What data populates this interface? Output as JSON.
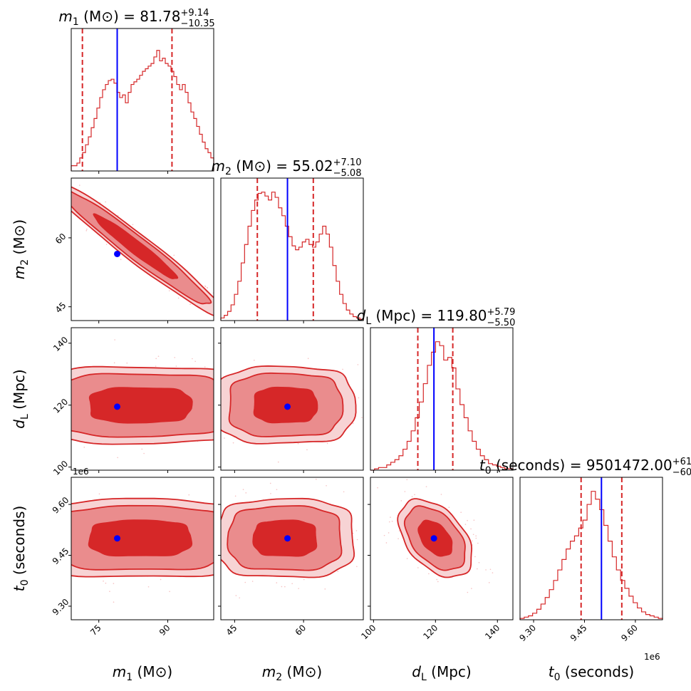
{
  "chart_data": {
    "type": "corner",
    "colors": {
      "posterior": "#d62728",
      "truth": "#0000ff",
      "frame": "#000000"
    },
    "parameters": [
      {
        "key": "m1",
        "symbol": "m",
        "sub": "1",
        "unit": " (M⊙)",
        "range": [
          69,
          100
        ],
        "ticks": [
          75,
          90
        ],
        "tick_labels": [
          "75",
          "90"
        ],
        "truth": 79,
        "median": 81.78,
        "q_low": 71.43,
        "q_high": 90.92,
        "title": {
          "prefix": " = 81.78",
          "sup": "+9.14",
          "sub": "−10.35"
        }
      },
      {
        "key": "m2",
        "symbol": "m",
        "sub": "2",
        "unit": " (M⊙)",
        "range": [
          42,
          73
        ],
        "ticks": [
          45,
          60
        ],
        "tick_labels": [
          "45",
          "60"
        ],
        "truth": 56.5,
        "median": 55.02,
        "q_low": 49.94,
        "q_high": 62.12,
        "title": {
          "prefix": " = 55.02",
          "sup": "+7.10",
          "sub": "−5.08"
        }
      },
      {
        "key": "dL",
        "symbol": "d",
        "sub": "L",
        "unit": " (Mpc)",
        "range": [
          99,
          145
        ],
        "ticks": [
          100,
          120,
          140
        ],
        "tick_labels": [
          "100",
          "120",
          "140"
        ],
        "truth": 119.5,
        "median": 119.8,
        "q_low": 114.3,
        "q_high": 125.59,
        "title": {
          "prefix": " = 119.80",
          "sup": "+5.79",
          "sub": "−5.50"
        }
      },
      {
        "key": "t0",
        "symbol": "t",
        "sub": "0",
        "unit": " (seconds)",
        "range": [
          9.26,
          9.68
        ],
        "ticks": [
          9.3,
          9.45,
          9.6
        ],
        "tick_labels": [
          "9.30",
          "9.45",
          "9.60"
        ],
        "offset_label": "1e6",
        "truth": 9.5,
        "median": 9.5,
        "q_low": 9.44,
        "q_high": 9.56,
        "title": {
          "prefix": " = 9501472.00",
          "sup": "+61",
          "sub": "−60"
        }
      }
    ],
    "histograms": [
      {
        "param": "m1",
        "values": [
          0.04,
          0.04,
          0.06,
          0.1,
          0.14,
          0.2,
          0.26,
          0.33,
          0.4,
          0.48,
          0.56,
          0.62,
          0.66,
          0.69,
          0.7,
          0.67,
          0.6,
          0.56,
          0.58,
          0.52,
          0.6,
          0.66,
          0.68,
          0.7,
          0.73,
          0.76,
          0.78,
          0.8,
          0.82,
          0.87,
          0.92,
          0.84,
          0.86,
          0.82,
          0.8,
          0.76,
          0.72,
          0.66,
          0.62,
          0.66,
          0.6,
          0.52,
          0.45,
          0.4,
          0.34,
          0.28,
          0.22,
          0.17,
          0.14,
          0.1
        ]
      },
      {
        "param": "m2",
        "values": [
          0.02,
          0.04,
          0.07,
          0.12,
          0.2,
          0.3,
          0.44,
          0.58,
          0.72,
          0.84,
          0.92,
          0.97,
          0.98,
          0.95,
          0.92,
          0.98,
          0.94,
          0.86,
          0.8,
          0.72,
          0.64,
          0.57,
          0.54,
          0.56,
          0.6,
          0.62,
          0.58,
          0.56,
          0.6,
          0.66,
          0.72,
          0.66,
          0.56,
          0.42,
          0.3,
          0.2,
          0.13,
          0.08,
          0.05,
          0.03,
          0.02,
          0.01
        ]
      },
      {
        "param": "dL",
        "values": [
          0.0,
          0.01,
          0.02,
          0.02,
          0.04,
          0.06,
          0.08,
          0.11,
          0.16,
          0.22,
          0.3,
          0.4,
          0.52,
          0.66,
          0.8,
          0.9,
          0.98,
          0.95,
          0.84,
          0.86,
          0.78,
          0.62,
          0.5,
          0.4,
          0.3,
          0.22,
          0.16,
          0.11,
          0.08,
          0.05,
          0.04,
          0.03,
          0.02,
          0.01,
          0.01
        ]
      },
      {
        "param": "t0",
        "values": [
          0.01,
          0.02,
          0.03,
          0.05,
          0.08,
          0.12,
          0.17,
          0.23,
          0.3,
          0.38,
          0.46,
          0.54,
          0.6,
          0.64,
          0.7,
          0.76,
          0.88,
          0.98,
          0.92,
          0.84,
          0.72,
          0.6,
          0.48,
          0.38,
          0.3,
          0.24,
          0.18,
          0.13,
          0.09,
          0.06,
          0.04,
          0.03,
          0.02,
          0.01
        ]
      }
    ],
    "pairs": [
      {
        "x": "m1",
        "y": "m2",
        "center": [
          83,
          58
        ],
        "sigma": [
          9,
          7
        ],
        "corr": -0.97
      },
      {
        "x": "m1",
        "y": "dL",
        "center": [
          84,
          120
        ],
        "sigma": [
          11,
          5.6
        ],
        "corr": 0.0
      },
      {
        "x": "m2",
        "y": "dL",
        "center": [
          56,
          120
        ],
        "sigma": [
          6.8,
          5.6
        ],
        "corr": 0.0
      },
      {
        "x": "m1",
        "y": "t0",
        "center": [
          84,
          9.5
        ],
        "sigma": [
          11,
          0.052
        ],
        "corr": 0.0
      },
      {
        "x": "m2",
        "y": "t0",
        "center": [
          56,
          9.5
        ],
        "sigma": [
          6.8,
          0.052
        ],
        "corr": 0.0
      },
      {
        "x": "dL",
        "y": "t0",
        "center": [
          120,
          9.5
        ],
        "sigma": [
          5.4,
          0.052
        ],
        "corr": -0.45
      }
    ],
    "contour_levels_sigma": [
      1.0,
      1.8,
      2.2
    ]
  }
}
